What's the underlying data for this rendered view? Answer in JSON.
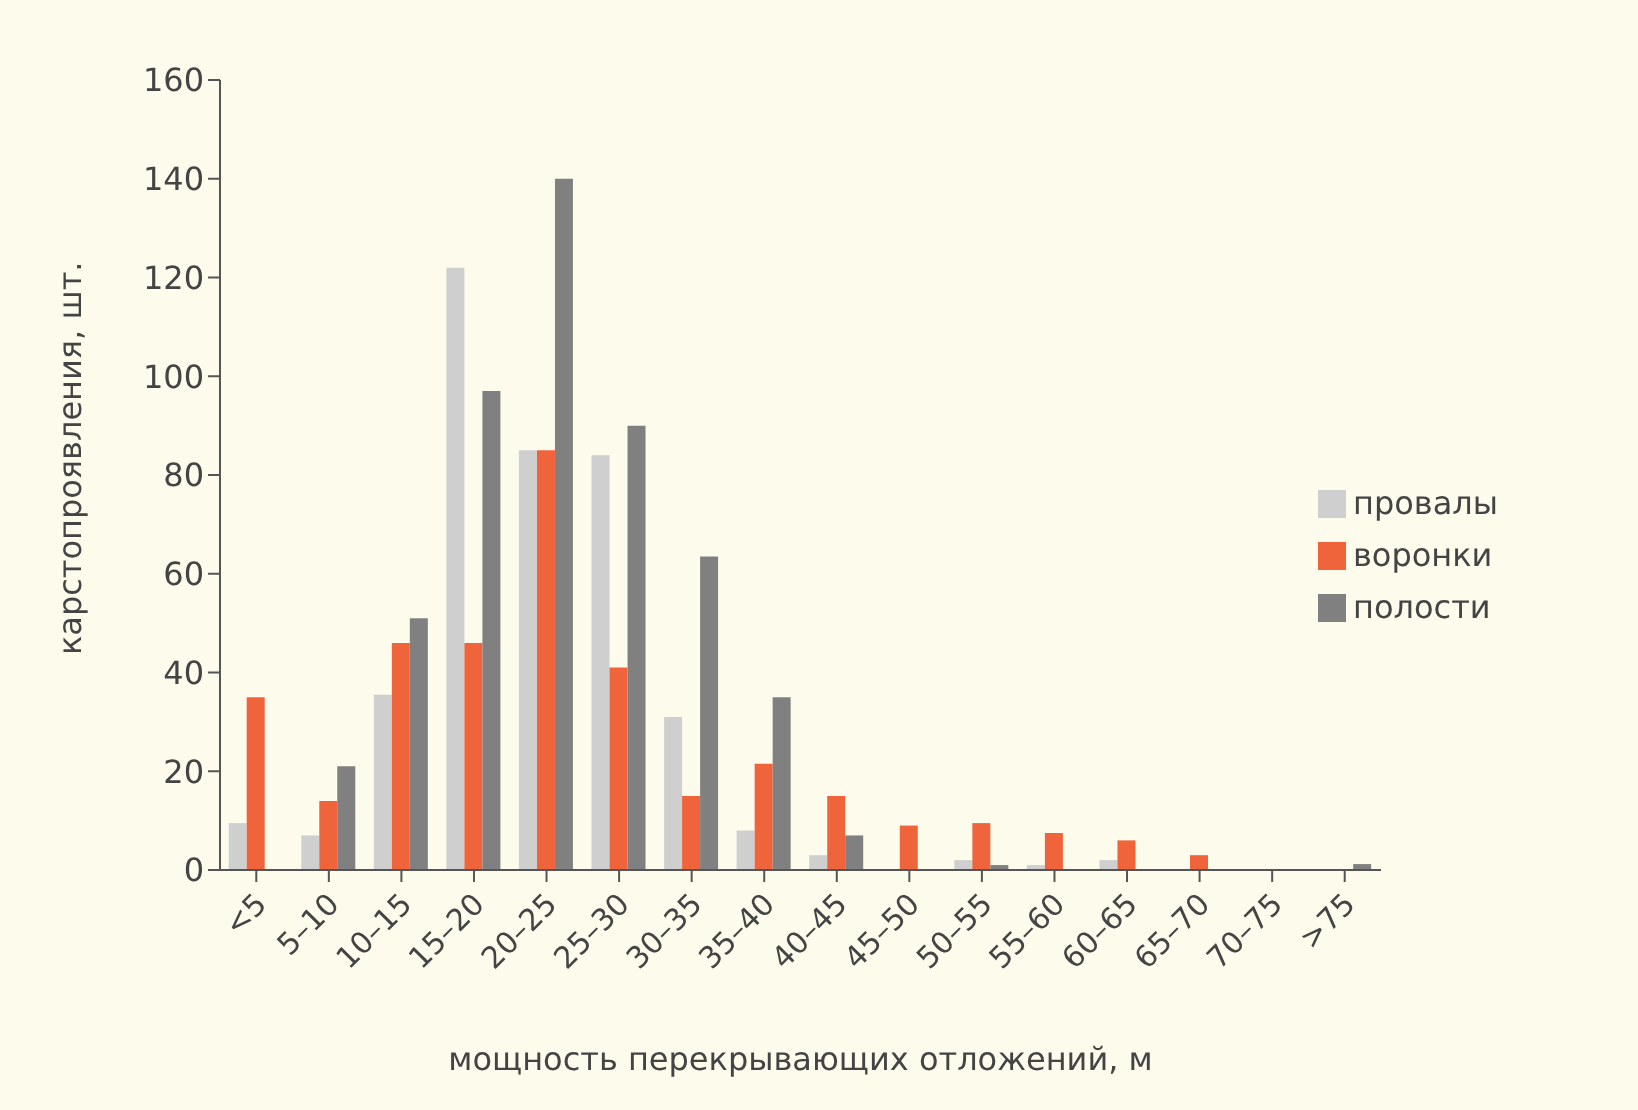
{
  "chart_data": {
    "type": "bar",
    "xlabel": "мощность перекрывающих отложений, м",
    "ylabel": "карстопроявления, шт.",
    "categories": [
      "<5",
      "5–10",
      "10–15",
      "15–20",
      "20–25",
      "25–30",
      "30–35",
      "35–40",
      "40–45",
      "45–50",
      "50–55",
      "55–60",
      "60–65",
      "65–70",
      "70–75",
      ">75"
    ],
    "series": [
      {
        "name": "провалы",
        "color": "#cfcfcf",
        "values": [
          9.5,
          7,
          35.5,
          122,
          85,
          84,
          31,
          8,
          3,
          0,
          2,
          1,
          2,
          0,
          0,
          0
        ]
      },
      {
        "name": "воронки",
        "color": "#f0643c",
        "values": [
          35,
          14,
          46,
          46,
          85,
          41,
          15,
          21.5,
          15,
          9,
          9.5,
          7.5,
          6,
          3,
          0,
          0
        ]
      },
      {
        "name": "полости",
        "color": "#808080",
        "values": [
          0,
          21,
          51,
          97,
          140,
          90,
          63.5,
          35,
          7,
          0,
          1,
          0,
          0,
          0,
          0,
          1.2
        ]
      }
    ],
    "ylim": [
      0,
      160
    ],
    "yticks": [
      0,
      20,
      40,
      60,
      80,
      100,
      120,
      140,
      160
    ],
    "grid": false,
    "legend": "right"
  }
}
